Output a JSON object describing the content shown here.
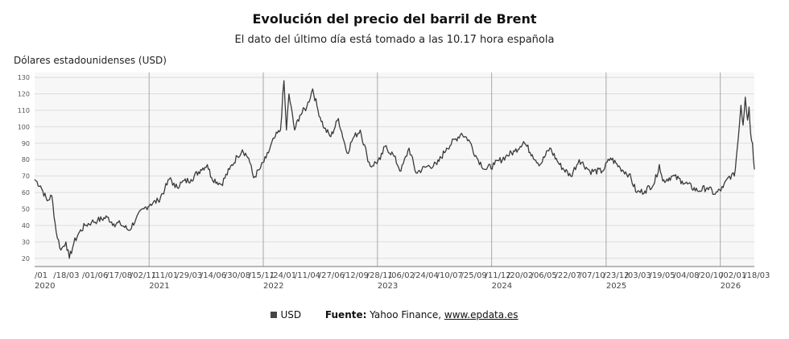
{
  "chart_data": {
    "type": "line",
    "title": "Evolución del precio del barril de Brent",
    "subtitle": "El dato del último día está tomado a las 10.17 hora española",
    "ylabel": "Dólares estadounidenses (USD)",
    "ylim": [
      15,
      133
    ],
    "yticks": [
      20,
      30,
      40,
      50,
      60,
      70,
      80,
      90,
      100,
      110,
      120,
      130
    ],
    "xlim": [
      "2020-01-01",
      "2026-04-20"
    ],
    "date_tick_labels": [
      {
        "date": "2020-01-01",
        "label": "/01"
      },
      {
        "date": "2020-03-01",
        "label": "18/03"
      },
      {
        "date": "2020-06-01",
        "label": "01/06"
      },
      {
        "date": "2020-08-17",
        "label": "17/08"
      },
      {
        "date": "2020-11-02",
        "label": "02/11"
      },
      {
        "date": "2021-01-11",
        "label": "11/01"
      },
      {
        "date": "2021-03-29",
        "label": "29/03"
      },
      {
        "date": "2021-06-14",
        "label": "14/06"
      },
      {
        "date": "2021-08-30",
        "label": "30/08"
      },
      {
        "date": "2021-11-15",
        "label": "15/11"
      },
      {
        "date": "2022-01-24",
        "label": "24/01"
      },
      {
        "date": "2022-04-11",
        "label": "11/04"
      },
      {
        "date": "2022-06-27",
        "label": "27/06"
      },
      {
        "date": "2022-09-12",
        "label": "12/09"
      },
      {
        "date": "2022-11-28",
        "label": "28/11"
      },
      {
        "date": "2023-02-06",
        "label": "06/02"
      },
      {
        "date": "2023-04-24",
        "label": "24/04"
      },
      {
        "date": "2023-07-10",
        "label": "10/07"
      },
      {
        "date": "2023-09-25",
        "label": "25/09"
      },
      {
        "date": "2023-12-11",
        "label": "11/12"
      },
      {
        "date": "2024-02-20",
        "label": "20/02"
      },
      {
        "date": "2024-05-06",
        "label": "06/05"
      },
      {
        "date": "2024-07-22",
        "label": "22/07"
      },
      {
        "date": "2024-10-07",
        "label": "07/10"
      },
      {
        "date": "2024-12-23",
        "label": "23/12"
      },
      {
        "date": "2025-03-03",
        "label": "03/03"
      },
      {
        "date": "2025-05-19",
        "label": "19/05"
      },
      {
        "date": "2025-08-04",
        "label": "04/08"
      },
      {
        "date": "2025-10-20",
        "label": "20/10"
      },
      {
        "date": "2026-01-02",
        "label": "02/01"
      },
      {
        "date": "2026-03-18",
        "label": "18/03"
      }
    ],
    "year_labels": [
      {
        "date": "2020-01-01",
        "label": "2020"
      },
      {
        "date": "2021-01-01",
        "label": "2021"
      },
      {
        "date": "2022-01-01",
        "label": "2022"
      },
      {
        "date": "2023-01-01",
        "label": "2023"
      },
      {
        "date": "2024-01-01",
        "label": "2024"
      },
      {
        "date": "2025-01-01",
        "label": "2025"
      },
      {
        "date": "2026-01-01",
        "label": "2026"
      }
    ],
    "grid": true,
    "series": [
      {
        "name": "USD",
        "color": "#3a3a3a",
        "points": [
          [
            "2020-01-01",
            68
          ],
          [
            "2020-01-20",
            64
          ],
          [
            "2020-02-10",
            55
          ],
          [
            "2020-02-25",
            58
          ],
          [
            "2020-03-10",
            36
          ],
          [
            "2020-03-25",
            25
          ],
          [
            "2020-04-10",
            30
          ],
          [
            "2020-04-21",
            20
          ],
          [
            "2020-05-05",
            29
          ],
          [
            "2020-05-20",
            35
          ],
          [
            "2020-06-10",
            40
          ],
          [
            "2020-07-01",
            42
          ],
          [
            "2020-07-20",
            43
          ],
          [
            "2020-08-20",
            45
          ],
          [
            "2020-09-10",
            41
          ],
          [
            "2020-10-01",
            41
          ],
          [
            "2020-10-29",
            37
          ],
          [
            "2020-11-20",
            44
          ],
          [
            "2020-12-15",
            50
          ],
          [
            "2021-01-05",
            53
          ],
          [
            "2021-01-30",
            55
          ],
          [
            "2021-02-20",
            62
          ],
          [
            "2021-03-10",
            69
          ],
          [
            "2021-03-25",
            63
          ],
          [
            "2021-04-15",
            66
          ],
          [
            "2021-05-15",
            68
          ],
          [
            "2021-06-15",
            74
          ],
          [
            "2021-07-06",
            77
          ],
          [
            "2021-07-20",
            69
          ],
          [
            "2021-08-20",
            65
          ],
          [
            "2021-09-15",
            74
          ],
          [
            "2021-10-10",
            82
          ],
          [
            "2021-10-26",
            86
          ],
          [
            "2021-11-15",
            81
          ],
          [
            "2021-12-01",
            69
          ],
          [
            "2021-12-20",
            74
          ],
          [
            "2022-01-10",
            81
          ],
          [
            "2022-02-05",
            93
          ],
          [
            "2022-02-25",
            98
          ],
          [
            "2022-03-08",
            128
          ],
          [
            "2022-03-16",
            98
          ],
          [
            "2022-03-24",
            120
          ],
          [
            "2022-04-11",
            98
          ],
          [
            "2022-04-28",
            107
          ],
          [
            "2022-05-20",
            112
          ],
          [
            "2022-06-08",
            123
          ],
          [
            "2022-06-25",
            110
          ],
          [
            "2022-07-15",
            99
          ],
          [
            "2022-08-05",
            94
          ],
          [
            "2022-08-29",
            105
          ],
          [
            "2022-09-26",
            84
          ],
          [
            "2022-10-15",
            93
          ],
          [
            "2022-11-07",
            98
          ],
          [
            "2022-11-28",
            83
          ],
          [
            "2022-12-09",
            76
          ],
          [
            "2023-01-10",
            80
          ],
          [
            "2023-01-25",
            88
          ],
          [
            "2023-02-20",
            83
          ],
          [
            "2023-03-17",
            73
          ],
          [
            "2023-04-12",
            87
          ],
          [
            "2023-05-04",
            72
          ],
          [
            "2023-06-10",
            76
          ],
          [
            "2023-07-10",
            77
          ],
          [
            "2023-08-10",
            87
          ],
          [
            "2023-09-27",
            96
          ],
          [
            "2023-10-20",
            92
          ],
          [
            "2023-11-15",
            81
          ],
          [
            "2023-12-12",
            74
          ],
          [
            "2024-01-10",
            77
          ],
          [
            "2024-02-15",
            82
          ],
          [
            "2024-03-15",
            85
          ],
          [
            "2024-04-12",
            91
          ],
          [
            "2024-05-10",
            83
          ],
          [
            "2024-06-04",
            77
          ],
          [
            "2024-07-05",
            87
          ],
          [
            "2024-08-05",
            77
          ],
          [
            "2024-09-10",
            70
          ],
          [
            "2024-10-07",
            80
          ],
          [
            "2024-11-10",
            73
          ],
          [
            "2024-12-20",
            73
          ],
          [
            "2025-01-15",
            81
          ],
          [
            "2025-02-15",
            75
          ],
          [
            "2025-03-15",
            71
          ],
          [
            "2025-04-09",
            60
          ],
          [
            "2025-05-05",
            61
          ],
          [
            "2025-06-05",
            66
          ],
          [
            "2025-06-20",
            77
          ],
          [
            "2025-07-01",
            67
          ],
          [
            "2025-08-01",
            70
          ],
          [
            "2025-09-01",
            67
          ],
          [
            "2025-10-20",
            61
          ],
          [
            "2025-11-20",
            63
          ],
          [
            "2025-12-16",
            59
          ],
          [
            "2026-01-10",
            63
          ],
          [
            "2026-01-30",
            70
          ],
          [
            "2026-02-15",
            70
          ],
          [
            "2026-02-28",
            94
          ],
          [
            "2026-03-08",
            113
          ],
          [
            "2026-03-15",
            101
          ],
          [
            "2026-03-22",
            118
          ],
          [
            "2026-03-29",
            104
          ],
          [
            "2026-04-03",
            112
          ],
          [
            "2026-04-08",
            96
          ],
          [
            "2026-04-14",
            90
          ],
          [
            "2026-04-20",
            74
          ]
        ]
      }
    ]
  },
  "legend": {
    "label": "USD",
    "color": "#444444"
  },
  "source": {
    "label": "Fuente:",
    "text": "Yahoo Finance,",
    "link": "www.epdata.es"
  }
}
